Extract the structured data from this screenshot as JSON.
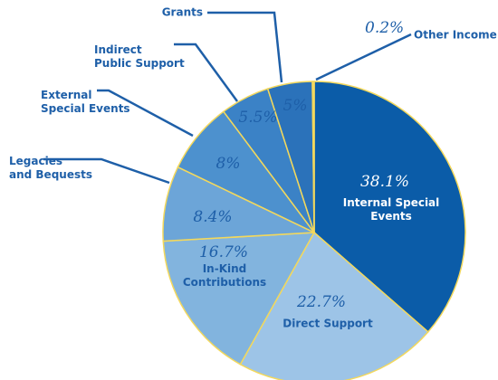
{
  "chart_data": {
    "type": "pie",
    "categories": [
      "Internal Special\nEvents",
      "Direct Support",
      "In-Kind\nContributions",
      "Legacies\nand Bequests",
      "External\nSpecial Events",
      "Indirect\nPublic Support",
      "Grants",
      "Other Income"
    ],
    "values": [
      38.1,
      22.7,
      16.7,
      8.4,
      8,
      5.5,
      5,
      0.2
    ],
    "value_labels": [
      "38.1%",
      "22.7%",
      "16.7%",
      "8.4%",
      "8%",
      "5.5%",
      "5%",
      "0.2%"
    ],
    "colors": [
      "#0b5ca8",
      "#9dc4e7",
      "#82b4de",
      "#6ca5d8",
      "#4d91ce",
      "#3b82c6",
      "#2b72ba",
      "#f6dc6a"
    ]
  }
}
